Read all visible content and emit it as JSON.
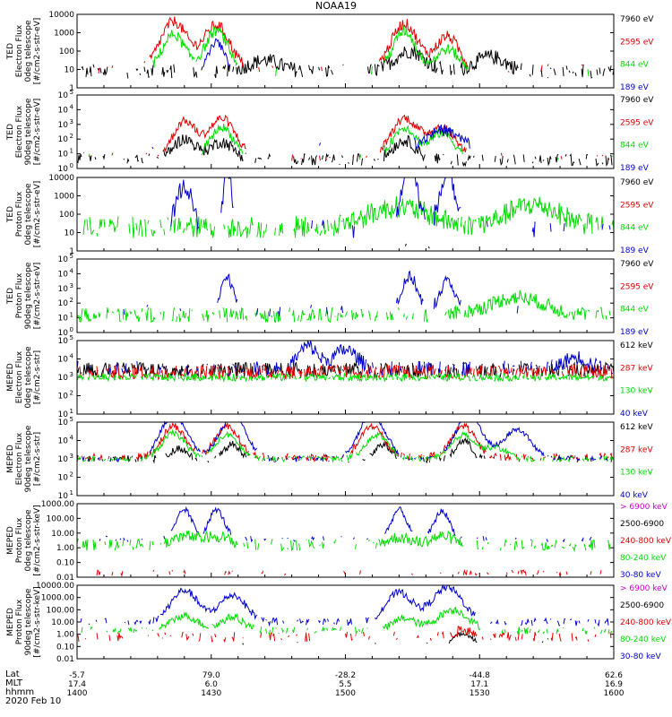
{
  "title": "NOAA19",
  "colors": {
    "black": "#000000",
    "red": "#e00000",
    "green": "#00dd00",
    "blue": "#0000cc",
    "magenta": "#cc00cc"
  },
  "chart_data": [
    {
      "type": "line",
      "ylabel": [
        "TED",
        "Electron Flux",
        "0deg telescope",
        "[#/cm2-s-str-eV]"
      ],
      "ylim": [
        1,
        10000
      ],
      "yticks": [
        "10000",
        "1000",
        "100",
        "10",
        "1"
      ],
      "ytick_style": "plain",
      "legend": [
        "7960 eV",
        "2595 eV",
        "844 eV",
        "189 eV"
      ],
      "legend_colors": [
        "black",
        "red",
        "green",
        "blue"
      ],
      "series": [
        {
          "name": "7960 eV",
          "color": "black",
          "base": 0.9,
          "noise": 0.4,
          "density": 0.5,
          "peaks": [
            [
              0.35,
              0.6,
              0.04
            ],
            [
              0.62,
              1.1,
              0.04
            ],
            [
              0.77,
              0.8,
              0.04
            ]
          ]
        },
        {
          "name": "2595 eV",
          "color": "red",
          "base": 1.0,
          "noise": 0.3,
          "density": 0.15,
          "peaks": [
            [
              0.18,
              2.6,
              0.035
            ],
            [
              0.26,
              2.4,
              0.035
            ],
            [
              0.61,
              2.5,
              0.035
            ],
            [
              0.69,
              1.8,
              0.03
            ]
          ]
        },
        {
          "name": "844 eV",
          "color": "green",
          "base": 0.9,
          "noise": 0.3,
          "density": 0.08,
          "peaks": [
            [
              0.18,
              2.0,
              0.03
            ],
            [
              0.26,
              2.2,
              0.03
            ],
            [
              0.61,
              2.2,
              0.03
            ],
            [
              0.69,
              1.2,
              0.03
            ]
          ]
        },
        {
          "name": "189 eV",
          "color": "blue",
          "base": 0.9,
          "noise": 0.2,
          "density": 0.02,
          "peaks": [
            [
              0.26,
              1.6,
              0.02
            ]
          ]
        }
      ]
    },
    {
      "type": "line",
      "ylabel": [
        "TED",
        "Electron Flux",
        "90deg telescope",
        "[#/cm2-s-str-eV]"
      ],
      "ylim": [
        1,
        100000
      ],
      "yticks": [
        "5",
        "4",
        "3",
        "2",
        "1",
        "0"
      ],
      "ytick_style": "exp",
      "legend": [
        "7960 eV",
        "2595 eV",
        "844 eV",
        "189 eV"
      ],
      "legend_colors": [
        "black",
        "red",
        "green",
        "blue"
      ],
      "series": [
        {
          "name": "7960 eV",
          "color": "black",
          "base": 0.6,
          "noise": 0.4,
          "density": 0.5,
          "peaks": [
            [
              0.2,
              1.4,
              0.03
            ],
            [
              0.27,
              1.2,
              0.03
            ],
            [
              0.61,
              1.3,
              0.03
            ]
          ]
        },
        {
          "name": "2595 eV",
          "color": "red",
          "base": 0.8,
          "noise": 0.3,
          "density": 0.2,
          "peaks": [
            [
              0.2,
              2.4,
              0.03
            ],
            [
              0.27,
              2.6,
              0.035
            ],
            [
              0.61,
              2.6,
              0.035
            ],
            [
              0.68,
              2.0,
              0.035
            ]
          ]
        },
        {
          "name": "844 eV",
          "color": "green",
          "base": 0.8,
          "noise": 0.3,
          "density": 0.08,
          "peaks": [
            [
              0.27,
              2.0,
              0.03
            ],
            [
              0.61,
              2.0,
              0.03
            ],
            [
              0.68,
              1.6,
              0.03
            ]
          ]
        },
        {
          "name": "189 eV",
          "color": "blue",
          "base": 1.5,
          "noise": 0.4,
          "density": 0.08,
          "peaks": [
            [
              0.68,
              1.1,
              0.04
            ]
          ]
        }
      ]
    },
    {
      "type": "line",
      "ylabel": [
        "TED",
        "Proton Flux",
        "0deg telescope",
        "[#/cm2-s-str-eV]"
      ],
      "ylim": [
        1,
        10000
      ],
      "yticks": [
        "10000",
        "1000",
        "100",
        "10",
        "1"
      ],
      "ytick_style": "plain",
      "legend": [
        "7960 eV",
        "2595 eV",
        "844 eV",
        "189 eV"
      ],
      "legend_colors": [
        "black",
        "red",
        "green",
        "blue"
      ],
      "series": [
        {
          "name": "7960 eV",
          "color": "black",
          "base": 0.2,
          "noise": 0.2,
          "density": 0.02,
          "peaks": []
        },
        {
          "name": "844 eV",
          "color": "green",
          "base": 1.3,
          "noise": 0.6,
          "density": 0.7,
          "peaks": [
            [
              0.6,
              1.1,
              0.08
            ],
            [
              0.85,
              1.2,
              0.07
            ]
          ]
        },
        {
          "name": "189 eV",
          "color": "blue",
          "base": 1.2,
          "noise": 0.5,
          "density": 0.15,
          "peaks": [
            [
              0.2,
              2.4,
              0.02
            ],
            [
              0.28,
              3.5,
              0.01
            ],
            [
              0.62,
              3.6,
              0.02
            ],
            [
              0.69,
              3.2,
              0.02
            ]
          ]
        }
      ]
    },
    {
      "type": "line",
      "ylabel": [
        "TED",
        "Proton Flux",
        "90deg telescope",
        "[#/cm2-s-str-eV]"
      ],
      "ylim": [
        1,
        100000
      ],
      "yticks": [
        "5",
        "4",
        "3",
        "2",
        "1",
        "0"
      ],
      "ytick_style": "exp",
      "legend": [
        "7960 eV",
        "2595 eV",
        "844 eV",
        "189 eV"
      ],
      "legend_colors": [
        "black",
        "red",
        "green",
        "blue"
      ],
      "series": [
        {
          "name": "844 eV",
          "color": "green",
          "base": 1.2,
          "noise": 0.5,
          "density": 0.7,
          "peaks": [
            [
              0.82,
              1.2,
              0.07
            ]
          ]
        },
        {
          "name": "189 eV",
          "color": "blue",
          "base": 1.5,
          "noise": 0.4,
          "density": 0.2,
          "peaks": [
            [
              0.28,
              2.3,
              0.015
            ],
            [
              0.62,
              2.3,
              0.02
            ],
            [
              0.69,
              2.0,
              0.02
            ]
          ]
        }
      ]
    },
    {
      "type": "line",
      "ylabel": [
        "MEPED",
        "Electron Flux",
        "0deg telescope",
        "[#/cm2-s-str]"
      ],
      "ylim": [
        10,
        100000
      ],
      "yticks": [
        "5",
        "4",
        "3",
        "2",
        "1"
      ],
      "ytick_style": "exp",
      "legend": [
        "612 keV",
        "287 keV",
        "130 keV",
        "40 keV"
      ],
      "legend_colors": [
        "black",
        "red",
        "green",
        "blue"
      ],
      "series": [
        {
          "name": "612 keV",
          "color": "black",
          "base": 2.4,
          "noise": 0.4,
          "density": 0.8,
          "peaks": []
        },
        {
          "name": "287 keV",
          "color": "red",
          "base": 2.3,
          "noise": 0.4,
          "density": 0.8,
          "peaks": []
        },
        {
          "name": "130 keV",
          "color": "green",
          "base": 2.0,
          "noise": 0.2,
          "density": 0.9,
          "peaks": []
        },
        {
          "name": "40 keV",
          "color": "blue",
          "base": 2.5,
          "noise": 0.4,
          "density": 0.5,
          "peaks": [
            [
              0.43,
              1.2,
              0.025
            ],
            [
              0.5,
              1.0,
              0.03
            ],
            [
              0.93,
              0.6,
              0.03
            ]
          ]
        }
      ]
    },
    {
      "type": "line",
      "ylabel": [
        "MEPED",
        "Electron Flux",
        "90deg telescope",
        "[#/cm2-s-str]"
      ],
      "ylim": [
        10,
        100000
      ],
      "yticks": [
        "5",
        "4",
        "3",
        "2",
        "1"
      ],
      "ytick_style": "exp",
      "legend": [
        "612 keV",
        "287 keV",
        "130 keV",
        "40 keV"
      ],
      "legend_colors": [
        "black",
        "red",
        "green",
        "blue"
      ],
      "series": [
        {
          "name": "612 keV",
          "color": "black",
          "base": 2.0,
          "noise": 0.2,
          "density": 0.4,
          "peaks": [
            [
              0.19,
              0.6,
              0.02
            ],
            [
              0.29,
              0.8,
              0.02
            ],
            [
              0.57,
              0.8,
              0.02
            ],
            [
              0.72,
              1.0,
              0.02
            ]
          ]
        },
        {
          "name": "287 keV",
          "color": "red",
          "base": 2.1,
          "noise": 0.2,
          "density": 0.6,
          "peaks": [
            [
              0.18,
              1.7,
              0.03
            ],
            [
              0.28,
              1.7,
              0.03
            ],
            [
              0.55,
              1.7,
              0.03
            ],
            [
              0.72,
              1.7,
              0.03
            ]
          ]
        },
        {
          "name": "130 keV",
          "color": "green",
          "base": 2.0,
          "noise": 0.15,
          "density": 0.7,
          "peaks": [
            [
              0.18,
              1.4,
              0.03
            ],
            [
              0.28,
              1.3,
              0.03
            ],
            [
              0.56,
              1.3,
              0.03
            ],
            [
              0.72,
              1.3,
              0.03
            ],
            [
              0.78,
              0.6,
              0.03
            ]
          ]
        },
        {
          "name": "40 keV",
          "color": "blue",
          "base": 2.0,
          "noise": 0.15,
          "density": 0.5,
          "peaks": [
            [
              0.18,
              2.4,
              0.035
            ],
            [
              0.29,
              2.3,
              0.035
            ],
            [
              0.55,
              2.4,
              0.035
            ],
            [
              0.73,
              2.4,
              0.035
            ],
            [
              0.82,
              1.6,
              0.035
            ]
          ]
        }
      ]
    },
    {
      "type": "line",
      "ylabel": [
        "MEPED",
        "Proton Flux",
        "0deg telescope",
        "[#/cm2-s-str-keV]"
      ],
      "ylim": [
        0.01,
        1000
      ],
      "yticks": [
        "1000.00",
        "100.00",
        "10.00",
        "1.00",
        "0.10",
        "0.01"
      ],
      "ytick_style": "plain",
      "legend": [
        "> 6900 keV",
        "2500-6900",
        "240-800 keV",
        "80-240 keV",
        "30-80 keV"
      ],
      "legend_colors": [
        "magenta",
        "black",
        "red",
        "green",
        "blue"
      ],
      "series": [
        {
          "name": "240-800 keV",
          "color": "red",
          "base": 0.3,
          "noise": 0.2,
          "density": 0.3,
          "peaks": []
        },
        {
          "name": "80-240 keV",
          "color": "green",
          "base": 2.2,
          "noise": 0.4,
          "density": 0.5,
          "peaks": [
            [
              0.2,
              0.6,
              0.03
            ],
            [
              0.26,
              0.6,
              0.03
            ],
            [
              0.6,
              0.5,
              0.03
            ],
            [
              0.68,
              0.6,
              0.03
            ]
          ]
        },
        {
          "name": "30-80 keV",
          "color": "blue",
          "base": 2.6,
          "noise": 0.2,
          "density": 0.3,
          "peaks": [
            [
              0.2,
              2.0,
              0.02
            ],
            [
              0.26,
              2.0,
              0.02
            ],
            [
              0.6,
              2.0,
              0.02
            ],
            [
              0.68,
              1.9,
              0.02
            ]
          ]
        }
      ]
    },
    {
      "type": "line",
      "ylabel": [
        "MEPED",
        "Proton Flux",
        "90deg telescope",
        "[#/cm2-s-str-keV]"
      ],
      "ylim": [
        0.01,
        10000
      ],
      "yticks": [
        "10000.00",
        "1000.00",
        "100.00",
        "10.00",
        "1.00",
        "0.10",
        "0.01"
      ],
      "ytick_style": "plain",
      "legend": [
        "> 6900 keV",
        "2500-6900",
        "240-800 keV",
        "80-240 keV",
        "30-80 keV"
      ],
      "legend_colors": [
        "magenta",
        "black",
        "red",
        "green",
        "blue"
      ],
      "series": [
        {
          "name": "2500-6900",
          "color": "black",
          "base": 1.3,
          "noise": 0.2,
          "density": 0.1,
          "peaks": [
            [
              0.72,
              0.8,
              0.02
            ]
          ]
        },
        {
          "name": "240-800 keV",
          "color": "red",
          "base": 1.8,
          "noise": 0.4,
          "density": 0.4,
          "peaks": [
            [
              0.72,
              0.6,
              0.02
            ]
          ]
        },
        {
          "name": "80-240 keV",
          "color": "green",
          "base": 2.3,
          "noise": 0.3,
          "density": 0.5,
          "peaks": [
            [
              0.2,
              1.2,
              0.035
            ],
            [
              0.29,
              1.1,
              0.03
            ],
            [
              0.61,
              1.0,
              0.03
            ],
            [
              0.7,
              1.7,
              0.04
            ]
          ]
        },
        {
          "name": "30-80 keV",
          "color": "blue",
          "base": 3.0,
          "noise": 0.3,
          "density": 0.5,
          "peaks": [
            [
              0.2,
              2.6,
              0.035
            ],
            [
              0.29,
              2.2,
              0.035
            ],
            [
              0.6,
              2.4,
              0.035
            ],
            [
              0.69,
              2.8,
              0.04
            ]
          ]
        }
      ]
    }
  ],
  "xaxis": {
    "row_labels": [
      "Lat",
      "MLT",
      "hhmm"
    ],
    "ticks": [
      {
        "lat": "-5.7",
        "mlt": "17.4",
        "hhmm": "1400"
      },
      {
        "lat": "79.0",
        "mlt": "6.0",
        "hhmm": "1430"
      },
      {
        "lat": "-28.2",
        "mlt": "5.5",
        "hhmm": "1500"
      },
      {
        "lat": "-44.8",
        "mlt": "17.1",
        "hhmm": "1530"
      },
      {
        "lat": "62.6",
        "mlt": "16.9",
        "hhmm": "1600"
      }
    ],
    "date": "2020 Feb 10"
  }
}
